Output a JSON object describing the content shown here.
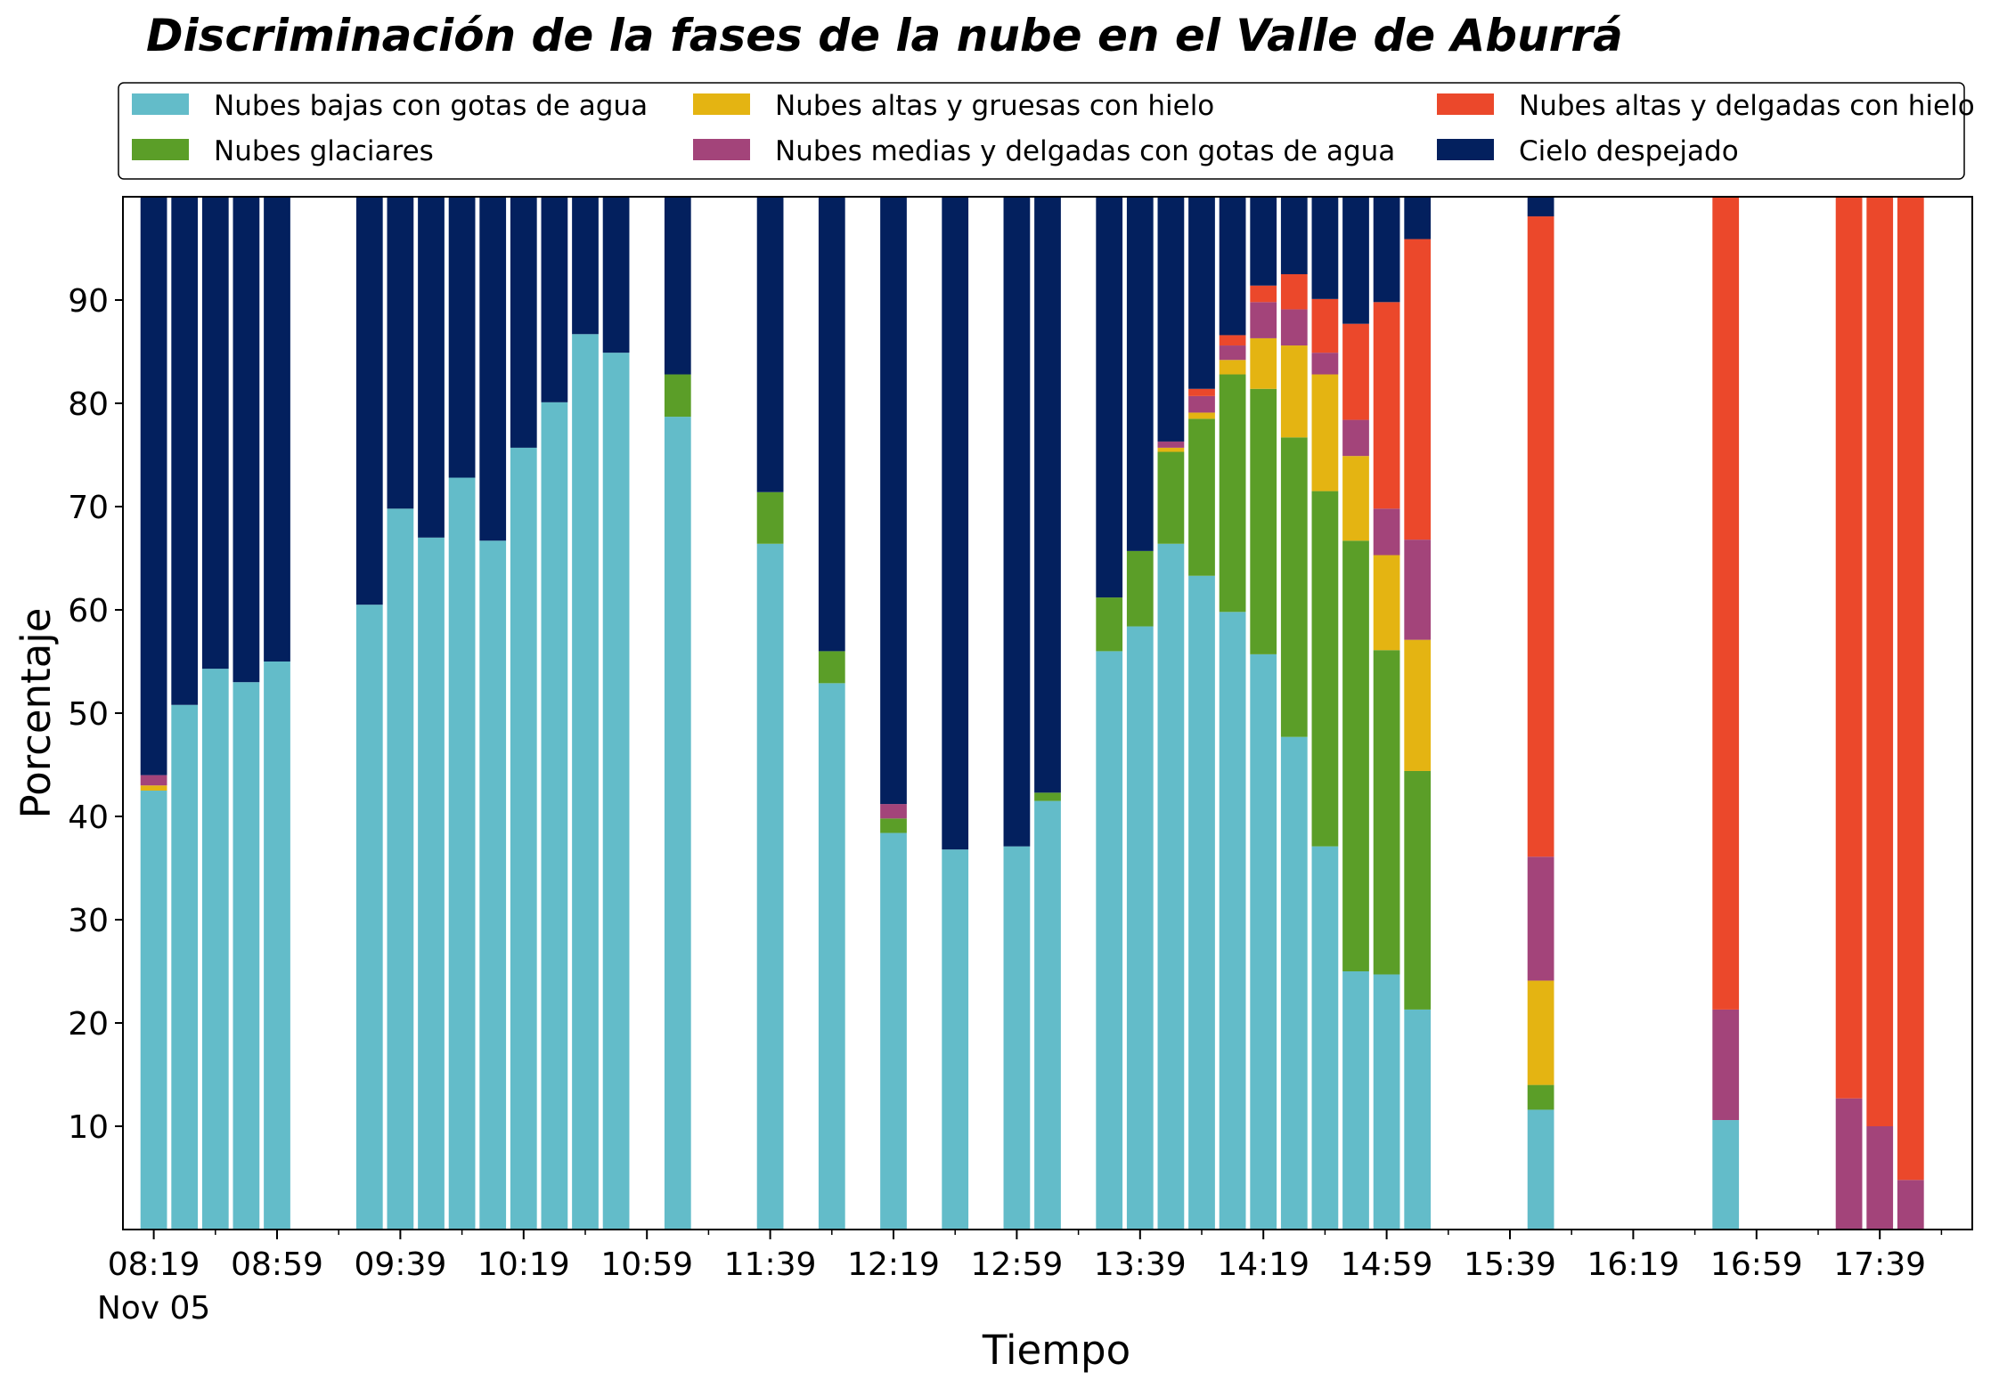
{
  "chart_data": {
    "type": "bar",
    "stacked": true,
    "title": "Discriminación de la fases de la nube en el Valle de Aburrá",
    "xlabel": "Tiempo",
    "ylabel": "Porcentaje",
    "ylim": [
      0,
      100
    ],
    "yticks": [
      10,
      20,
      30,
      40,
      50,
      60,
      70,
      80,
      90
    ],
    "x_range": [
      "08:09",
      "18:09"
    ],
    "xtick_labels": [
      {
        "time": "08:19",
        "label": "08:19",
        "sublabel": "Nov 05"
      },
      {
        "time": "08:59",
        "label": "08:59"
      },
      {
        "time": "09:39",
        "label": "09:39"
      },
      {
        "time": "10:19",
        "label": "10:19"
      },
      {
        "time": "10:59",
        "label": "10:59"
      },
      {
        "time": "11:39",
        "label": "11:39"
      },
      {
        "time": "12:19",
        "label": "12:19"
      },
      {
        "time": "12:59",
        "label": "12:59"
      },
      {
        "time": "13:39",
        "label": "13:39"
      },
      {
        "time": "14:19",
        "label": "14:19"
      },
      {
        "time": "14:59",
        "label": "14:59"
      },
      {
        "time": "15:39",
        "label": "15:39"
      },
      {
        "time": "16:19",
        "label": "16:19"
      },
      {
        "time": "16:59",
        "label": "16:59"
      },
      {
        "time": "17:39",
        "label": "17:39"
      }
    ],
    "x_minor_ticks": [
      "08:39",
      "09:19",
      "09:59",
      "10:39",
      "11:19",
      "11:59",
      "12:39",
      "13:19",
      "13:59",
      "14:39",
      "15:19",
      "15:59",
      "16:39",
      "17:19",
      "17:59"
    ],
    "legend": {
      "placement": "top",
      "columns": 3
    },
    "series": [
      {
        "key": "low",
        "name": "Nubes bajas con gotas de agua",
        "color": "#63BCC9"
      },
      {
        "key": "glac",
        "name": "Nubes glaciares",
        "color": "#5B9E28"
      },
      {
        "key": "thick",
        "name": "Nubes altas y gruesas con hielo",
        "color": "#E4B412"
      },
      {
        "key": "mid",
        "name": "Nubes medias y delgadas con gotas de agua",
        "color": "#A3447A"
      },
      {
        "key": "thin",
        "name": "Nubes altas y delgadas con hielo",
        "color": "#EB482B"
      },
      {
        "key": "clear",
        "name": "Cielo despejado",
        "color": "#03205E"
      }
    ],
    "bars": [
      {
        "time": "08:19",
        "low": 42.5,
        "glac": 0,
        "thick": 0.5,
        "mid": 1.0,
        "thin": 0,
        "clear": 56.0
      },
      {
        "time": "08:29",
        "low": 50.8,
        "glac": 0,
        "thick": 0,
        "mid": 0,
        "thin": 0,
        "clear": 49.2
      },
      {
        "time": "08:39",
        "low": 54.3,
        "glac": 0,
        "thick": 0,
        "mid": 0,
        "thin": 0,
        "clear": 45.7
      },
      {
        "time": "08:49",
        "low": 53.0,
        "glac": 0,
        "thick": 0,
        "mid": 0,
        "thin": 0,
        "clear": 47.0
      },
      {
        "time": "08:59",
        "low": 55.0,
        "glac": 0,
        "thick": 0,
        "mid": 0,
        "thin": 0,
        "clear": 45.0
      },
      {
        "time": "09:29",
        "low": 60.5,
        "glac": 0,
        "thick": 0,
        "mid": 0,
        "thin": 0,
        "clear": 39.5
      },
      {
        "time": "09:39",
        "low": 69.8,
        "glac": 0,
        "thick": 0,
        "mid": 0,
        "thin": 0,
        "clear": 30.2
      },
      {
        "time": "09:49",
        "low": 67.0,
        "glac": 0,
        "thick": 0,
        "mid": 0,
        "thin": 0,
        "clear": 33.0
      },
      {
        "time": "09:59",
        "low": 72.8,
        "glac": 0,
        "thick": 0,
        "mid": 0,
        "thin": 0,
        "clear": 27.2
      },
      {
        "time": "10:09",
        "low": 66.7,
        "glac": 0,
        "thick": 0,
        "mid": 0,
        "thin": 0,
        "clear": 33.3
      },
      {
        "time": "10:19",
        "low": 75.7,
        "glac": 0,
        "thick": 0,
        "mid": 0,
        "thin": 0,
        "clear": 24.3
      },
      {
        "time": "10:29",
        "low": 80.1,
        "glac": 0,
        "thick": 0,
        "mid": 0,
        "thin": 0,
        "clear": 19.9
      },
      {
        "time": "10:39",
        "low": 86.7,
        "glac": 0,
        "thick": 0,
        "mid": 0,
        "thin": 0,
        "clear": 13.3
      },
      {
        "time": "10:49",
        "low": 84.9,
        "glac": 0,
        "thick": 0,
        "mid": 0,
        "thin": 0,
        "clear": 15.1
      },
      {
        "time": "11:09",
        "low": 78.7,
        "glac": 4.1,
        "thick": 0,
        "mid": 0,
        "thin": 0,
        "clear": 17.2
      },
      {
        "time": "11:39",
        "low": 66.4,
        "glac": 5.0,
        "thick": 0,
        "mid": 0,
        "thin": 0,
        "clear": 28.6
      },
      {
        "time": "11:59",
        "low": 52.9,
        "glac": 3.1,
        "thick": 0,
        "mid": 0,
        "thin": 0,
        "clear": 44.0
      },
      {
        "time": "12:19",
        "low": 38.4,
        "glac": 1.4,
        "thick": 0,
        "mid": 1.4,
        "thin": 0,
        "clear": 58.8
      },
      {
        "time": "12:39",
        "low": 36.8,
        "glac": 0,
        "thick": 0,
        "mid": 0,
        "thin": 0,
        "clear": 63.2
      },
      {
        "time": "12:59",
        "low": 37.1,
        "glac": 0,
        "thick": 0,
        "mid": 0,
        "thin": 0,
        "clear": 62.9
      },
      {
        "time": "13:09",
        "low": 41.5,
        "glac": 0.8,
        "thick": 0,
        "mid": 0,
        "thin": 0,
        "clear": 57.7
      },
      {
        "time": "13:29",
        "low": 56.0,
        "glac": 5.2,
        "thick": 0,
        "mid": 0,
        "thin": 0,
        "clear": 38.8
      },
      {
        "time": "13:39",
        "low": 58.4,
        "glac": 7.3,
        "thick": 0,
        "mid": 0,
        "thin": 0,
        "clear": 34.3
      },
      {
        "time": "13:49",
        "low": 66.4,
        "glac": 8.9,
        "thick": 0.4,
        "mid": 0.6,
        "thin": 0,
        "clear": 23.7
      },
      {
        "time": "13:59",
        "low": 63.3,
        "glac": 15.2,
        "thick": 0.6,
        "mid": 1.6,
        "thin": 0.7,
        "clear": 18.6
      },
      {
        "time": "14:09",
        "low": 59.8,
        "glac": 23.0,
        "thick": 1.4,
        "mid": 1.4,
        "thin": 1.0,
        "clear": 13.4
      },
      {
        "time": "14:19",
        "low": 55.7,
        "glac": 25.7,
        "thick": 4.9,
        "mid": 3.5,
        "thin": 1.6,
        "clear": 8.6
      },
      {
        "time": "14:29",
        "low": 47.7,
        "glac": 29.0,
        "thick": 8.9,
        "mid": 3.5,
        "thin": 3.4,
        "clear": 7.5
      },
      {
        "time": "14:39",
        "low": 37.1,
        "glac": 34.4,
        "thick": 11.3,
        "mid": 2.1,
        "thin": 5.2,
        "clear": 9.9
      },
      {
        "time": "14:49",
        "low": 25.0,
        "glac": 41.7,
        "thick": 8.2,
        "mid": 3.5,
        "thin": 9.3,
        "clear": 12.3
      },
      {
        "time": "14:59",
        "low": 24.7,
        "glac": 31.4,
        "thick": 9.2,
        "mid": 4.5,
        "thin": 20.0,
        "clear": 10.2
      },
      {
        "time": "15:09",
        "low": 21.3,
        "glac": 23.1,
        "thick": 12.7,
        "mid": 9.7,
        "thin": 29.1,
        "clear": 4.1
      },
      {
        "time": "15:49",
        "low": 11.6,
        "glac": 2.4,
        "thick": 10.1,
        "mid": 12.0,
        "thin": 62.0,
        "clear": 1.9
      },
      {
        "time": "16:49",
        "low": 10.6,
        "glac": 0,
        "thick": 0,
        "mid": 10.7,
        "thin": 78.7,
        "clear": 0
      },
      {
        "time": "17:29",
        "low": 0,
        "glac": 0,
        "thick": 0,
        "mid": 12.7,
        "thin": 87.3,
        "clear": 0
      },
      {
        "time": "17:39",
        "low": 0,
        "glac": 0,
        "thick": 0,
        "mid": 10.0,
        "thin": 90.0,
        "clear": 0
      },
      {
        "time": "17:49",
        "low": 0,
        "glac": 0,
        "thick": 0,
        "mid": 4.8,
        "thin": 95.2,
        "clear": 0
      }
    ]
  }
}
